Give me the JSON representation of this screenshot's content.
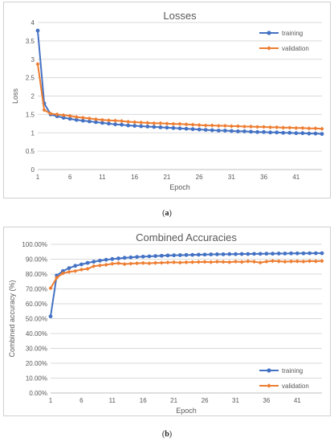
{
  "colors": {
    "training": "#4472C4",
    "validation": "#ED7D31",
    "grid": "#d9d9d9",
    "text": "#595959"
  },
  "captions": {
    "a_open": "(",
    "a_letter": "a",
    "a_close": ")",
    "b_open": "(",
    "b_letter": "b",
    "b_close": ")"
  },
  "chart_data": [
    {
      "type": "line",
      "title": "Losses",
      "xlabel": "Epoch",
      "ylabel": "Loss",
      "ylim": [
        0,
        4
      ],
      "grid": true,
      "legend_position": "top-right",
      "x_ticks": [
        "1",
        "6",
        "11",
        "16",
        "21",
        "26",
        "31",
        "36",
        "41"
      ],
      "y_ticks": [
        "0",
        "0.5",
        "1",
        "1.5",
        "2",
        "2.5",
        "3",
        "3.5",
        "4"
      ],
      "x": [
        1,
        2,
        3,
        4,
        5,
        6,
        7,
        8,
        9,
        10,
        11,
        12,
        13,
        14,
        15,
        16,
        17,
        18,
        19,
        20,
        21,
        22,
        23,
        24,
        25,
        26,
        27,
        28,
        29,
        30,
        31,
        32,
        33,
        34,
        35,
        36,
        37,
        38,
        39,
        40,
        41,
        42,
        43,
        44,
        45
      ],
      "series": [
        {
          "name": "training",
          "color": "#4472C4",
          "values": [
            3.78,
            1.8,
            1.5,
            1.45,
            1.41,
            1.38,
            1.35,
            1.33,
            1.31,
            1.29,
            1.27,
            1.25,
            1.23,
            1.22,
            1.2,
            1.19,
            1.18,
            1.17,
            1.16,
            1.15,
            1.14,
            1.13,
            1.12,
            1.11,
            1.1,
            1.09,
            1.08,
            1.07,
            1.06,
            1.06,
            1.05,
            1.04,
            1.04,
            1.03,
            1.02,
            1.02,
            1.01,
            1.01,
            1.0,
            1.0,
            0.99,
            0.99,
            0.98,
            0.98,
            0.97
          ]
        },
        {
          "name": "validation",
          "color": "#ED7D31",
          "values": [
            2.87,
            1.62,
            1.52,
            1.5,
            1.48,
            1.46,
            1.43,
            1.41,
            1.39,
            1.37,
            1.35,
            1.34,
            1.33,
            1.32,
            1.3,
            1.29,
            1.28,
            1.27,
            1.26,
            1.26,
            1.25,
            1.24,
            1.24,
            1.23,
            1.22,
            1.21,
            1.2,
            1.2,
            1.19,
            1.19,
            1.18,
            1.18,
            1.17,
            1.17,
            1.16,
            1.16,
            1.15,
            1.15,
            1.14,
            1.14,
            1.13,
            1.13,
            1.12,
            1.12,
            1.11
          ]
        }
      ]
    },
    {
      "type": "line",
      "title": "Combined Accuracies",
      "xlabel": "Epoch",
      "ylabel": "Combined accuracy (%)",
      "ylim": [
        0,
        100
      ],
      "grid": true,
      "legend_position": "bottom-right",
      "x_ticks": [
        "1",
        "6",
        "11",
        "16",
        "21",
        "26",
        "31",
        "36",
        "41"
      ],
      "y_ticks": [
        "0.00%",
        "10.00%",
        "20.00%",
        "30.00%",
        "40.00%",
        "50.00%",
        "60.00%",
        "70.00%",
        "80.00%",
        "90.00%",
        "100.00%"
      ],
      "x": [
        1,
        2,
        3,
        4,
        5,
        6,
        7,
        8,
        9,
        10,
        11,
        12,
        13,
        14,
        15,
        16,
        17,
        18,
        19,
        20,
        21,
        22,
        23,
        24,
        25,
        26,
        27,
        28,
        29,
        30,
        31,
        32,
        33,
        34,
        35,
        36,
        37,
        38,
        39,
        40,
        41,
        42,
        43,
        44,
        45
      ],
      "series": [
        {
          "name": "training",
          "color": "#4472C4",
          "values": [
            51.5,
            79,
            82,
            84,
            85.5,
            86.5,
            87.5,
            88.3,
            89,
            89.6,
            90.1,
            90.5,
            90.9,
            91.2,
            91.5,
            91.7,
            91.9,
            92.1,
            92.3,
            92.5,
            92.6,
            92.7,
            92.8,
            92.9,
            93.0,
            93.1,
            93.2,
            93.3,
            93.3,
            93.4,
            93.4,
            93.5,
            93.5,
            93.6,
            93.6,
            93.7,
            93.7,
            93.8,
            93.8,
            93.9,
            93.9,
            93.9,
            94.0,
            94.0,
            94.0
          ]
        },
        {
          "name": "validation",
          "color": "#ED7D31",
          "values": [
            70.5,
            77.5,
            80.5,
            81.5,
            82,
            83,
            83.5,
            85.3,
            85.8,
            86.2,
            86.9,
            87.3,
            86.7,
            87.0,
            87.2,
            87.4,
            87.2,
            87.5,
            87.6,
            87.8,
            87.9,
            87.7,
            87.9,
            88.0,
            88.1,
            88.2,
            88.0,
            88.3,
            88.2,
            88.0,
            88.4,
            88.1,
            88.6,
            88.3,
            87.7,
            88.4,
            88.8,
            88.6,
            88.3,
            88.5,
            88.6,
            88.4,
            88.7,
            88.6,
            88.8
          ]
        }
      ]
    }
  ]
}
